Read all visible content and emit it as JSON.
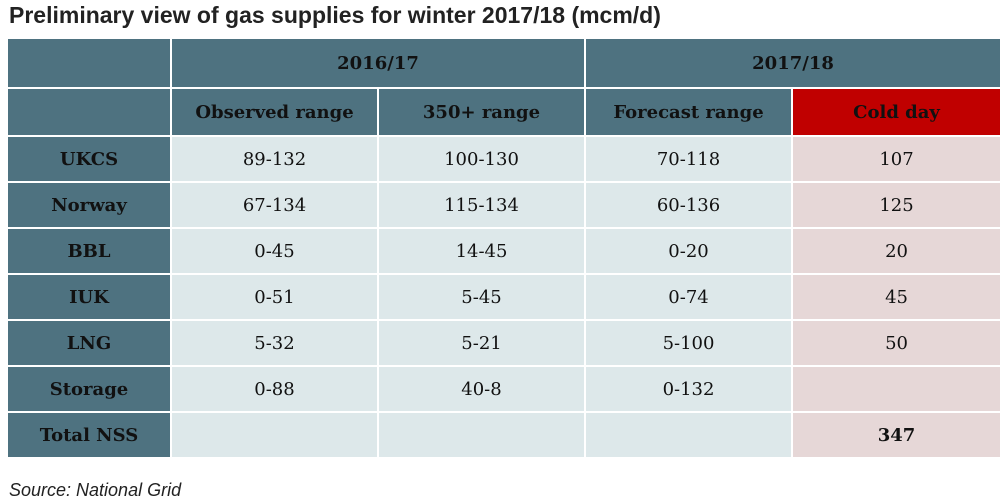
{
  "title": "Preliminary view of gas supplies for winter 2017/18 (mcm/d)",
  "source": "Source: National Grid",
  "chart_data": {
    "type": "table",
    "title": "Preliminary view of gas supplies for winter 2017/18 (mcm/d)",
    "header_groups": [
      {
        "label": "2016/17",
        "span": 2
      },
      {
        "label": "2017/18",
        "span": 2
      }
    ],
    "columns": [
      "Observed range",
      "350+ range",
      "Forecast range",
      "Cold day"
    ],
    "rows": [
      {
        "label": "UKCS",
        "values": [
          "89-132",
          "100-130",
          "70-118",
          "107"
        ]
      },
      {
        "label": "Norway",
        "values": [
          "67-134",
          "115-134",
          "60-136",
          "125"
        ]
      },
      {
        "label": "BBL",
        "values": [
          "0-45",
          "14-45",
          "0-20",
          "20"
        ]
      },
      {
        "label": "IUK",
        "values": [
          "0-51",
          "5-45",
          "0-74",
          "45"
        ]
      },
      {
        "label": "LNG",
        "values": [
          "5-32",
          "5-21",
          "5-100",
          "50"
        ]
      },
      {
        "label": "Storage",
        "values": [
          "0-88",
          "40-8",
          "0-132",
          ""
        ]
      },
      {
        "label": "Total NSS",
        "values": [
          "",
          "",
          "",
          "347"
        ]
      }
    ],
    "colors": {
      "header_bg": "#4e7280",
      "cold_header_bg": "#c00000",
      "cell_bg": "#dde8ea",
      "cold_cell_bg": "#e6d7d7"
    }
  }
}
